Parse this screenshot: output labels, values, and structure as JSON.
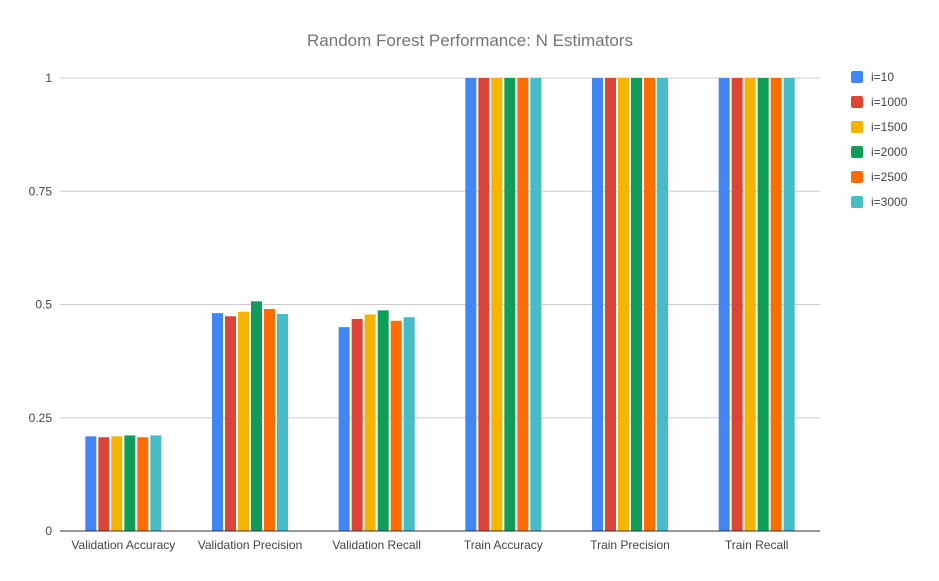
{
  "chart_data": {
    "type": "bar",
    "title": "Random Forest Performance: N Estimators",
    "xlabel": "",
    "ylabel": "",
    "ylim": [
      0,
      1
    ],
    "yticks": [
      {
        "value": 0,
        "label": "0"
      },
      {
        "value": 0.25,
        "label": "0.25"
      },
      {
        "value": 0.5,
        "label": "0.5"
      },
      {
        "value": 0.75,
        "label": "0.75"
      },
      {
        "value": 1,
        "label": "1"
      }
    ],
    "grid": true,
    "legend_position": "right",
    "categories": [
      "Validation Accuracy",
      "Validation Precision",
      "Validation Recall",
      "Train Accuracy",
      "Train Precision",
      "Train Recall"
    ],
    "series": [
      {
        "name": "i=10",
        "color": "#4285f4",
        "values": [
          0.209,
          0.481,
          0.45,
          1,
          1,
          1
        ]
      },
      {
        "name": "i=1000",
        "color": "#db4437",
        "values": [
          0.207,
          0.474,
          0.468,
          1,
          1,
          1
        ]
      },
      {
        "name": "i=1500",
        "color": "#f4b400",
        "values": [
          0.209,
          0.484,
          0.478,
          1,
          1,
          1
        ]
      },
      {
        "name": "i=2000",
        "color": "#0f9d58",
        "values": [
          0.211,
          0.507,
          0.487,
          1,
          1,
          1
        ]
      },
      {
        "name": "i=2500",
        "color": "#ff6d00",
        "values": [
          0.207,
          0.49,
          0.464,
          1,
          1,
          1
        ]
      },
      {
        "name": "i=3000",
        "color": "#46bdc6",
        "values": [
          0.211,
          0.479,
          0.472,
          1,
          1,
          1
        ]
      }
    ]
  }
}
